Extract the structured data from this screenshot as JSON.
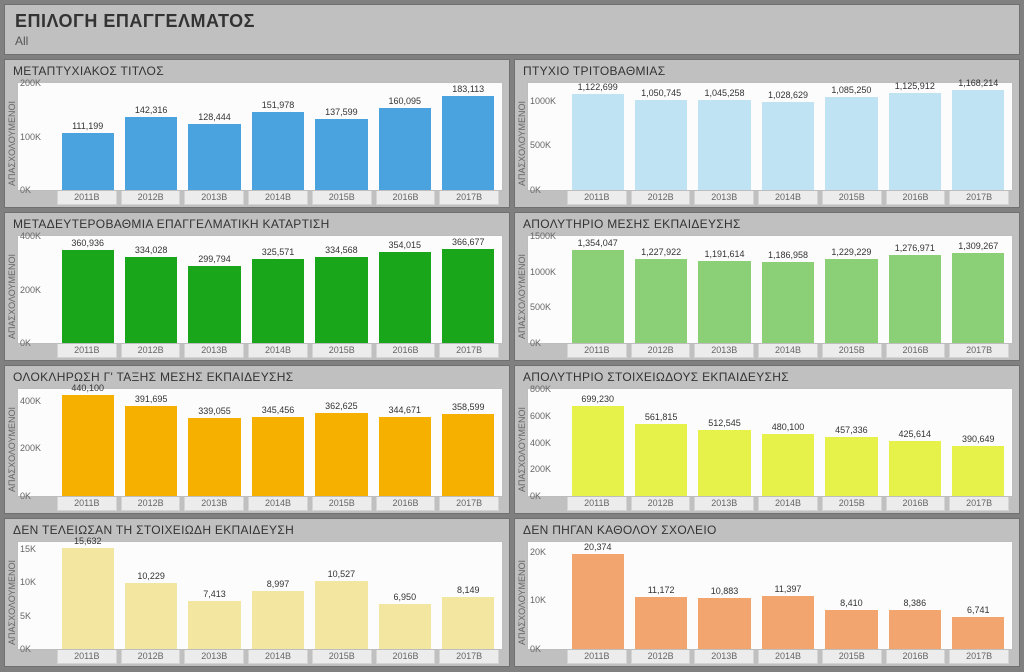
{
  "header": {
    "title": "ΕΠΙΛΟΓΗ ΕΠΑΓΓΕΛΜΑΤΟΣ",
    "subtitle": "All"
  },
  "common": {
    "categories": [
      "2011B",
      "2012B",
      "2013B",
      "2014B",
      "2015B",
      "2016B",
      "2017B"
    ],
    "ylabel": "ΑΠΑΣΧΟΛΟΥΜΕΝΟΙ",
    "plot_bg": "#fcfcfc",
    "border_color": "#bdbdbd",
    "xtick_bg": "#ececec",
    "label_fontsize": 9
  },
  "panels": [
    {
      "title": "ΜΕΤΑΠΤΥΧΙΑΚΟΣ ΤΙΤΛΟΣ",
      "values": [
        111199,
        142316,
        128444,
        151978,
        137599,
        160095,
        183113
      ],
      "labels": [
        "111,199",
        "142,316",
        "128,444",
        "151,978",
        "137,599",
        "160,095",
        "183,113"
      ],
      "ymax": 200000,
      "yticks": [
        0,
        100000,
        200000
      ],
      "ytick_labels": [
        "0K",
        "100K",
        "200K"
      ],
      "bar_color": "#4aa3df"
    },
    {
      "title": "ΠΤΥΧΙΟ ΤΡΙΤΟΒΑΘΜΙΑΣ",
      "values": [
        1122699,
        1050745,
        1045258,
        1028629,
        1085250,
        1125912,
        1168214
      ],
      "labels": [
        "1,122,699",
        "1,050,745",
        "1,045,258",
        "1,028,629",
        "1,085,250",
        "1,125,912",
        "1,168,214"
      ],
      "ymax": 1200000,
      "yticks": [
        0,
        500000,
        1000000
      ],
      "ytick_labels": [
        "0K",
        "500K",
        "1000K"
      ],
      "bar_color": "#bfe3f2"
    },
    {
      "title": "ΜΕΤΑΔΕΥΤΕΡΟΒΑΘΜΙΑ ΕΠΑΓΓΕΛΜΑΤΙΚΗ ΚΑΤΑΡΤΙΣΗ",
      "values": [
        360936,
        334028,
        299794,
        325571,
        334568,
        354015,
        366677
      ],
      "labels": [
        "360,936",
        "334,028",
        "299,794",
        "325,571",
        "334,568",
        "354,015",
        "366,677"
      ],
      "ymax": 400000,
      "yticks": [
        0,
        200000,
        400000
      ],
      "ytick_labels": [
        "0K",
        "200K",
        "400K"
      ],
      "bar_color": "#1aa61a"
    },
    {
      "title": "ΑΠΟΛΥΤΗΡΙΟ ΜΕΣΗΣ ΕΚΠΑΙΔΕΥΣΗΣ",
      "values": [
        1354047,
        1227922,
        1191614,
        1186958,
        1229229,
        1276971,
        1309267
      ],
      "labels": [
        "1,354,047",
        "1,227,922",
        "1,191,614",
        "1,186,958",
        "1,229,229",
        "1,276,971",
        "1,309,267"
      ],
      "ymax": 1500000,
      "yticks": [
        0,
        500000,
        1000000,
        1500000
      ],
      "ytick_labels": [
        "0K",
        "500K",
        "1000K",
        "1500K"
      ],
      "bar_color": "#8bcf77"
    },
    {
      "title": "ΟΛΟΚΛΗΡΩΣΗ Γ' ΤΑΞΗΣ ΜΕΣΗΣ ΕΚΠΑΙΔΕΥΣΗΣ",
      "values": [
        440100,
        391695,
        339055,
        345456,
        362625,
        344671,
        358599
      ],
      "labels": [
        "440,100",
        "391,695",
        "339,055",
        "345,456",
        "362,625",
        "344,671",
        "358,599"
      ],
      "ymax": 450000,
      "yticks": [
        0,
        200000,
        400000
      ],
      "ytick_labels": [
        "0K",
        "200K",
        "400K"
      ],
      "bar_color": "#f5b000"
    },
    {
      "title": "ΑΠΟΛΥΤΗΡΙΟ ΣΤΟΙΧΕΙΩΔΟΥΣ ΕΚΠΑΙΔΕΥΣΗΣ",
      "values": [
        699230,
        561815,
        512545,
        480100,
        457336,
        425614,
        390649
      ],
      "labels": [
        "699,230",
        "561,815",
        "512,545",
        "480,100",
        "457,336",
        "425,614",
        "390,649"
      ],
      "ymax": 800000,
      "yticks": [
        0,
        200000,
        400000,
        600000,
        800000
      ],
      "ytick_labels": [
        "0K",
        "200K",
        "400K",
        "600K",
        "800K"
      ],
      "bar_color": "#e6f24a"
    },
    {
      "title": "ΔΕΝ ΤΕΛΕΙΩΣΑΝ ΤΗ ΣΤΟΙΧΕΙΩΔΗ ΕΚΠΑΙΔΕΥΣΗ",
      "values": [
        15632,
        10229,
        7413,
        8997,
        10527,
        6950,
        8149
      ],
      "labels": [
        "15,632",
        "10,229",
        "7,413",
        "8,997",
        "10,527",
        "6,950",
        "8,149"
      ],
      "ymax": 16000,
      "yticks": [
        0,
        5000,
        10000,
        15000
      ],
      "ytick_labels": [
        "0K",
        "5K",
        "10K",
        "15K"
      ],
      "bar_color": "#f2e6a0"
    },
    {
      "title": "ΔΕΝ ΠΗΓΑΝ ΚΑΘΟΛΟΥ ΣΧΟΛΕΙΟ",
      "values": [
        20374,
        11172,
        10883,
        11397,
        8410,
        8386,
        6741
      ],
      "labels": [
        "20,374",
        "11,172",
        "10,883",
        "11,397",
        "8,410",
        "8,386",
        "6,741"
      ],
      "ymax": 22000,
      "yticks": [
        0,
        10000,
        20000
      ],
      "ytick_labels": [
        "0K",
        "10K",
        "20K"
      ],
      "bar_color": "#f2a56e"
    }
  ]
}
